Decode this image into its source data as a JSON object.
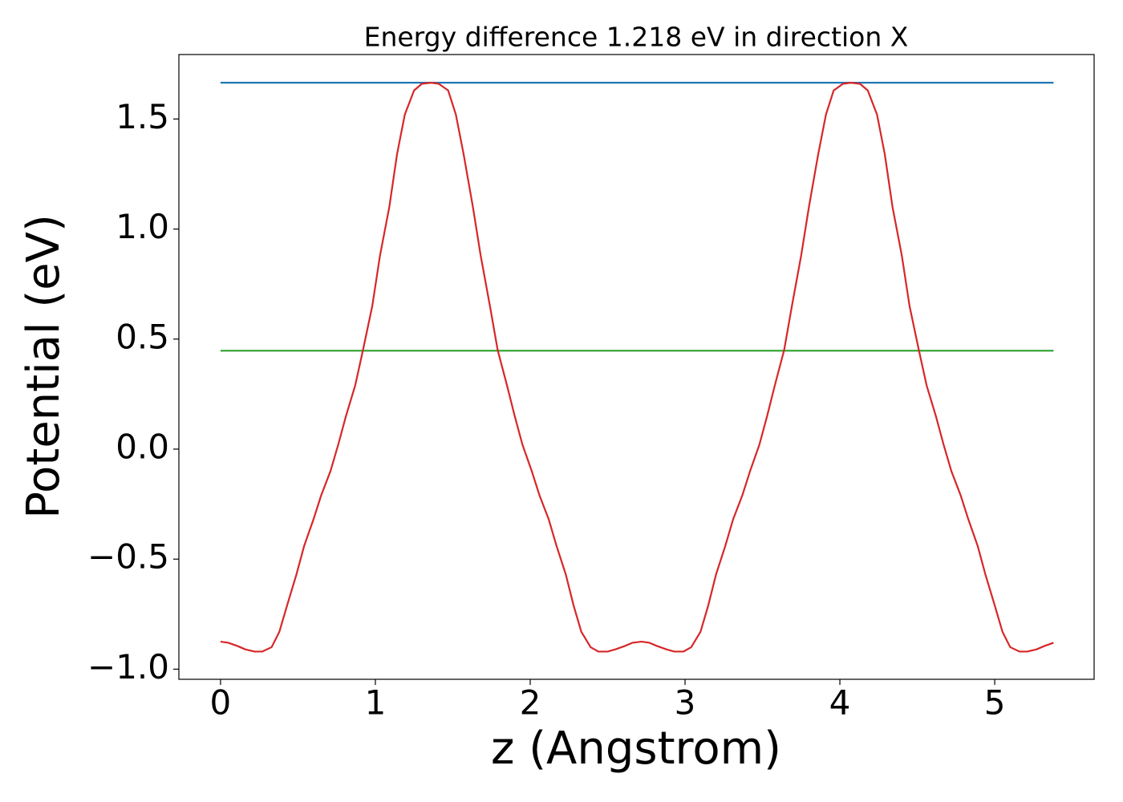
{
  "chart_data": {
    "type": "line",
    "title": "Energy difference 1.218 eV in direction X",
    "xlabel": "z (Angstrom)",
    "ylabel": "Potential (eV)",
    "xlim": [
      -0.269,
      5.642
    ],
    "ylim": [
      -1.046,
      1.793
    ],
    "xticks": [
      0,
      1,
      2,
      3,
      4,
      5
    ],
    "yticks": [
      {
        "value": -1.0,
        "label": "−1.0"
      },
      {
        "value": -0.5,
        "label": "−0.5"
      },
      {
        "value": 0.0,
        "label": "0.0"
      },
      {
        "value": 0.5,
        "label": "0.5"
      },
      {
        "value": 1.0,
        "label": "1.0"
      },
      {
        "value": 1.5,
        "label": "1.5"
      }
    ],
    "series": [
      {
        "color": "#1f77b4",
        "x": [
          0,
          5.38
        ],
        "values": [
          1.665,
          1.665
        ]
      },
      {
        "color": "#2ca02c",
        "x": [
          0,
          5.38
        ],
        "values": [
          0.447,
          0.447
        ]
      },
      {
        "color": "#d62728",
        "x": [
          0,
          0.05,
          0.11,
          0.16,
          0.22,
          0.27,
          0.33,
          0.38,
          0.43,
          0.49,
          0.54,
          0.6,
          0.65,
          0.71,
          0.76,
          0.81,
          0.87,
          0.92,
          0.98,
          1.03,
          1.09,
          1.14,
          1.19,
          1.25,
          1.3,
          1.36,
          1.41,
          1.47,
          1.52,
          1.57,
          1.63,
          1.68,
          1.74,
          1.79,
          1.85,
          1.9,
          1.95,
          2.01,
          2.06,
          2.12,
          2.17,
          2.23,
          2.28,
          2.33,
          2.39,
          2.44,
          2.5,
          2.55,
          2.61,
          2.66,
          2.72,
          2.77,
          2.82,
          2.88,
          2.93,
          2.99,
          3.04,
          3.1,
          3.15,
          3.2,
          3.26,
          3.31,
          3.37,
          3.42,
          3.48,
          3.53,
          3.58,
          3.64,
          3.69,
          3.75,
          3.8,
          3.86,
          3.91,
          3.96,
          4.02,
          4.07,
          4.13,
          4.18,
          4.24,
          4.29,
          4.34,
          4.4,
          4.45,
          4.51,
          4.56,
          4.62,
          4.67,
          4.72,
          4.78,
          4.83,
          4.89,
          4.94,
          5.0,
          5.05,
          5.1,
          5.16,
          5.21,
          5.27,
          5.32,
          5.38
        ],
        "values": [
          -0.875,
          -0.88,
          -0.895,
          -0.91,
          -0.92,
          -0.92,
          -0.9,
          -0.83,
          -0.71,
          -0.57,
          -0.44,
          -0.32,
          -0.21,
          -0.1,
          0.02,
          0.15,
          0.29,
          0.45,
          0.65,
          0.88,
          1.1,
          1.34,
          1.52,
          1.63,
          1.66,
          1.665,
          1.66,
          1.63,
          1.52,
          1.34,
          1.1,
          0.88,
          0.65,
          0.45,
          0.29,
          0.15,
          0.02,
          -0.1,
          -0.21,
          -0.32,
          -0.44,
          -0.57,
          -0.71,
          -0.83,
          -0.9,
          -0.92,
          -0.92,
          -0.91,
          -0.895,
          -0.88,
          -0.875,
          -0.88,
          -0.895,
          -0.91,
          -0.92,
          -0.92,
          -0.9,
          -0.83,
          -0.71,
          -0.57,
          -0.44,
          -0.32,
          -0.21,
          -0.1,
          0.02,
          0.15,
          0.29,
          0.45,
          0.65,
          0.88,
          1.1,
          1.34,
          1.52,
          1.63,
          1.66,
          1.665,
          1.66,
          1.63,
          1.52,
          1.34,
          1.1,
          0.88,
          0.65,
          0.45,
          0.29,
          0.15,
          0.02,
          -0.1,
          -0.21,
          -0.32,
          -0.44,
          -0.57,
          -0.71,
          -0.83,
          -0.9,
          -0.92,
          -0.92,
          -0.91,
          -0.895,
          -0.88
        ]
      }
    ]
  }
}
